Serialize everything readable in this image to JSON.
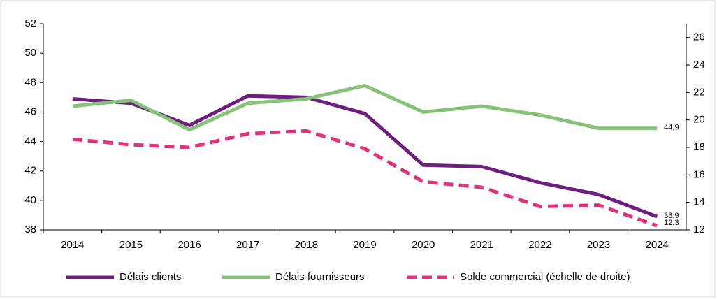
{
  "chart_data": {
    "type": "line",
    "categories": [
      "2014",
      "2015",
      "2016",
      "2017",
      "2018",
      "2019",
      "2020",
      "2021",
      "2022",
      "2023",
      "2024"
    ],
    "series": [
      {
        "name": "Délais clients",
        "color": "#6e1f7e",
        "dash": false,
        "values": [
          46.9,
          46.6,
          45.1,
          47.1,
          47.0,
          45.9,
          42.4,
          42.3,
          41.2,
          40.4,
          38.9
        ],
        "value_labels": [
          null,
          null,
          null,
          null,
          null,
          null,
          null,
          null,
          null,
          null,
          "38,9"
        ]
      },
      {
        "name": "Délais fournisseurs",
        "color": "#86c27a",
        "dash": false,
        "values": [
          46.4,
          46.8,
          44.8,
          46.6,
          46.9,
          47.8,
          46.0,
          46.4,
          45.8,
          44.9,
          44.9
        ],
        "value_labels": [
          null,
          null,
          null,
          null,
          null,
          null,
          null,
          null,
          null,
          null,
          "44,9"
        ]
      },
      {
        "name": "Solde commercial (échelle de droite)",
        "color": "#e0337f",
        "dash": true,
        "axis": "y2",
        "values": [
          18.6,
          18.2,
          18.0,
          19.0,
          19.2,
          17.9,
          15.5,
          15.1,
          13.7,
          13.8,
          12.3
        ],
        "value_labels": [
          null,
          null,
          null,
          null,
          null,
          null,
          null,
          null,
          null,
          null,
          "12,3"
        ]
      }
    ],
    "ylim": [
      38,
      52
    ],
    "yticks": [
      38,
      40,
      42,
      44,
      46,
      48,
      50,
      52
    ],
    "y2lim": [
      12,
      27
    ],
    "y2ticks": [
      12,
      14,
      16,
      18,
      20,
      22,
      24,
      26
    ],
    "legend": "bottom"
  }
}
